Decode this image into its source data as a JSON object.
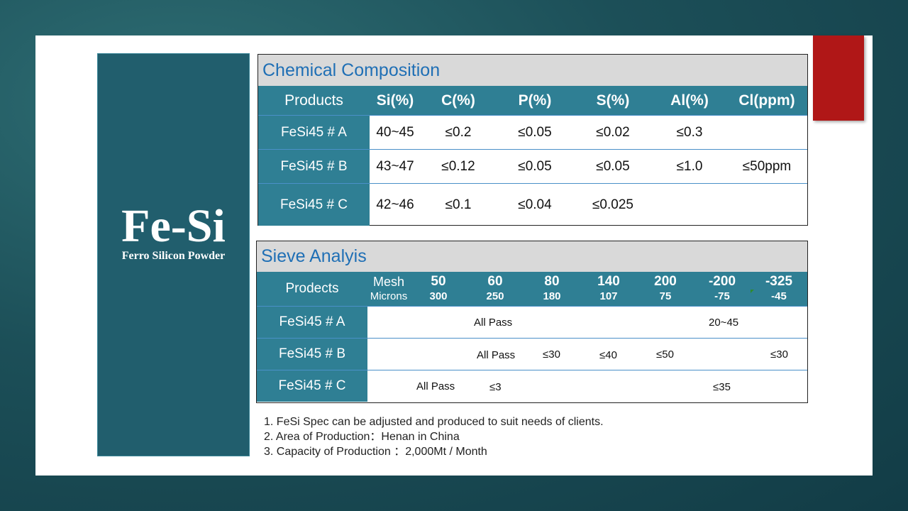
{
  "side": {
    "title": "Fe-Si",
    "subtitle": "Ferro Silicon Powder"
  },
  "chemical": {
    "heading": "Chemical   Composition",
    "columns": [
      "Products",
      "Si(%)",
      "C(%)",
      "P(%)",
      "S(%)",
      "Al(%)",
      "Cl(ppm)"
    ],
    "rows": [
      {
        "product": "FeSi45 # A",
        "values": [
          "40~45",
          "≤0.2",
          "≤0.05",
          "≤0.02",
          "≤0.3",
          ""
        ]
      },
      {
        "product": "FeSi45 # B",
        "values": [
          "43~47",
          "≤0.12",
          "≤0.05",
          "≤0.05",
          "≤1.0",
          "≤50ppm"
        ]
      },
      {
        "product": "FeSi45 # C",
        "values": [
          "42~46",
          "≤0.1",
          "≤0.04",
          "≤0.025",
          "",
          ""
        ]
      }
    ]
  },
  "sieve": {
    "heading": "Sieve   Analyis",
    "product_header": "Prodects",
    "mesh_label": "Mesh",
    "micron_label": "Microns",
    "mesh": [
      "50",
      "60",
      "80",
      "140",
      "200",
      "-200",
      "-325"
    ],
    "microns": [
      "300",
      "250",
      "180",
      "107",
      "75",
      "-75",
      "-45"
    ],
    "rows": [
      {
        "product": "FeSi45 # A",
        "entries": [
          {
            "text": "All Pass"
          },
          {
            "text": "20~45"
          }
        ]
      },
      {
        "product": "FeSi45 # B",
        "entries": [
          {
            "text": "All Pass"
          },
          {
            "text": "≤30"
          },
          {
            "text": "≤40"
          },
          {
            "text": "≤50"
          },
          {
            "text": "≤30"
          }
        ]
      },
      {
        "product": "FeSi45 # C",
        "entries": [
          {
            "text": "All Pass"
          },
          {
            "text": "≤3"
          },
          {
            "text": "≤35"
          }
        ]
      }
    ]
  },
  "notes": [
    "1.  FeSi Spec can be adjusted and produced to suit needs of clients.",
    "2.  Area of Production：Henan in China",
    "3.  Capacity of Production  ：2,000Mt / Month"
  ],
  "colors": {
    "panel": "#215e6d",
    "header_teal": "#2f7f94",
    "heading_blue": "#1f6fb5",
    "accent_red": "#b01717"
  }
}
